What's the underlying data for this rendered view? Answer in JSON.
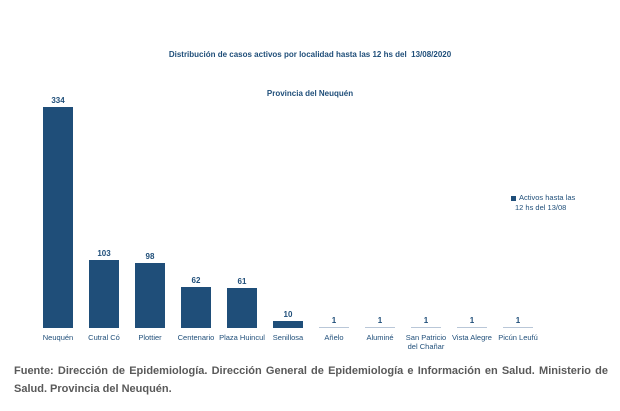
{
  "title": {
    "line1": "Distribución de casos activos por localidad hasta las 12 hs del  13/08/2020",
    "line2": "Provincia del Neuquén"
  },
  "chart_data": {
    "type": "bar",
    "title": "Distribución de casos activos por localidad hasta las 12 hs del 13/08/2020 Provincia del Neuquén",
    "categories": [
      "Neuquén",
      "Cutral Có",
      "Plottier",
      "Centenario",
      "Plaza Huincul",
      "Senillosa",
      "Añelo",
      "Aluminé",
      "San Patricio del Chañar",
      "Vista Alegre",
      "Picún Leufú"
    ],
    "tick_labels": [
      "Neuquén",
      "Cutral Có",
      "Plottier",
      "Centenario",
      "Plaza Huincul",
      "Senillosa",
      "Añelo",
      "Aluminé",
      "San Patricio\ndel Chañar",
      "Vista Alegre",
      "Picún Leufú"
    ],
    "values": [
      334,
      103,
      98,
      62,
      61,
      10,
      1,
      1,
      1,
      1,
      1
    ],
    "series_name": "Activos hasta las 12 hs del 13/08",
    "xlabel": "",
    "ylabel": "",
    "ylim": [
      0,
      350
    ],
    "grid": false,
    "data_labels": true,
    "legend_position": "right",
    "bar_color": "#1F4E79"
  },
  "legend": {
    "line1": "Activos hasta las",
    "line2": "12 hs del 13/08",
    "marker_color": "#1F4E79"
  },
  "footer": {
    "text": "Fuente: Dirección de Epidemiología. Dirección General de Epidemiología e Información en Salud. Ministerio de Salud. Provincia del Neuquén."
  },
  "colors": {
    "bar": "#1F4E79",
    "text_navy": "#1F4E79",
    "footer_gray": "#595959",
    "tiny_bar": "#b9c7d8",
    "background": "#ffffff"
  }
}
